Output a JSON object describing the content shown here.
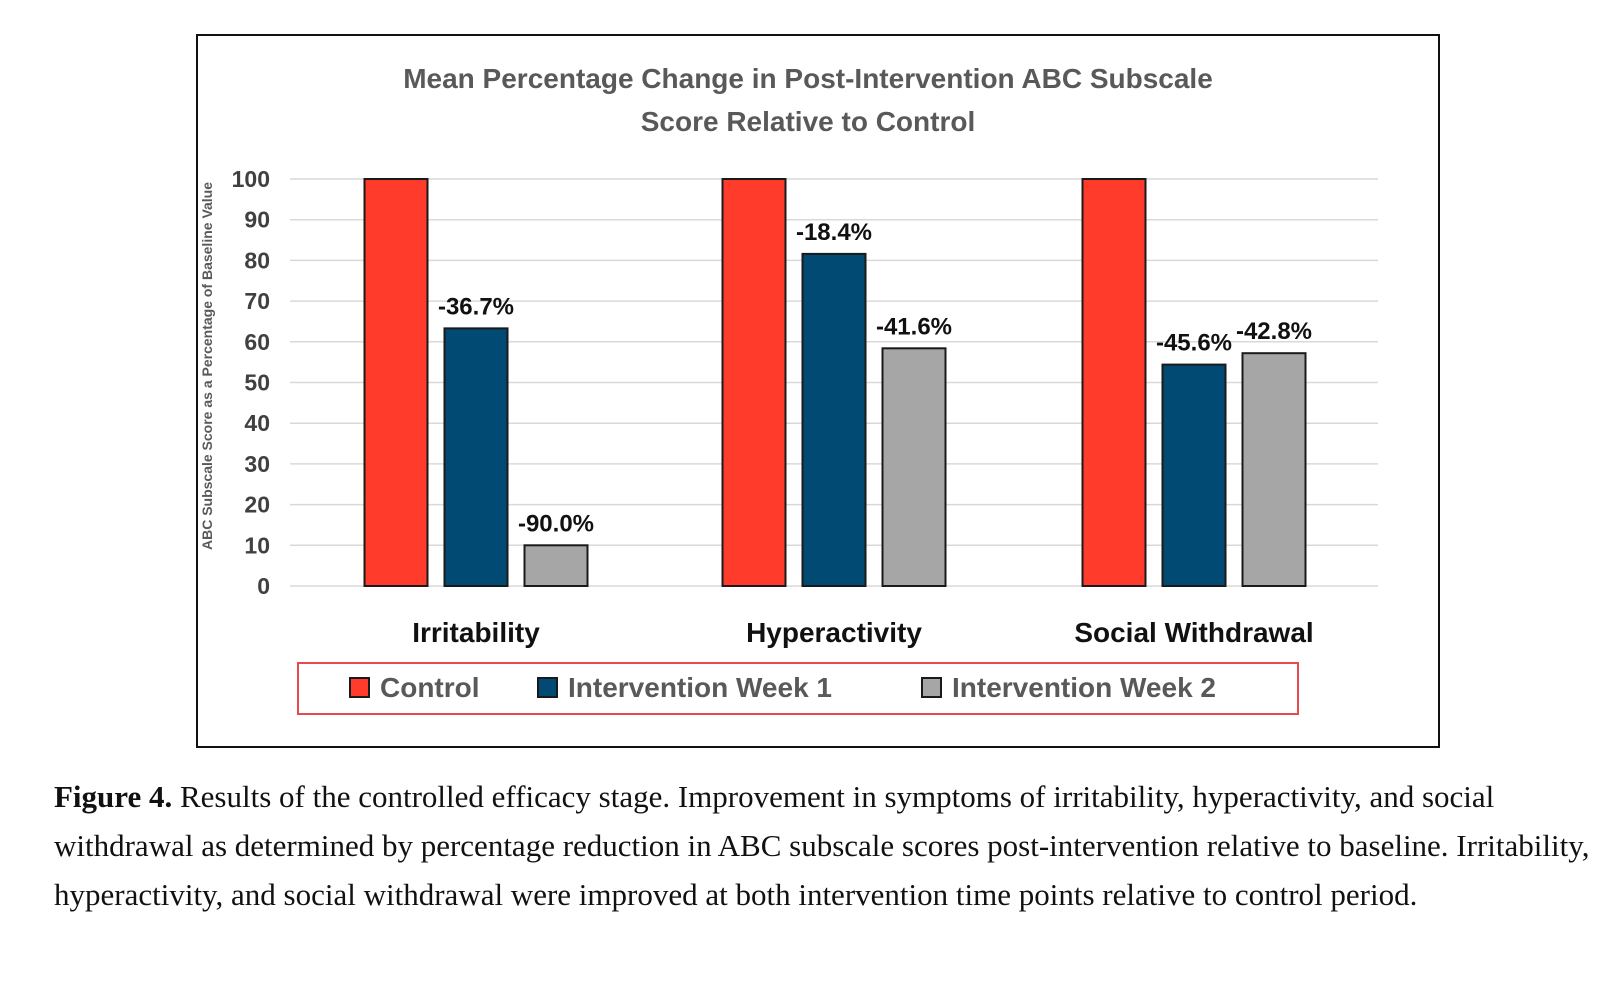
{
  "chart_data": {
    "type": "bar",
    "title_lines": [
      "Mean Percentage Change in Post-Intervention ABC Subscale",
      "Score Relative to Control"
    ],
    "ylabel": "ABC Subscale Score as a Percentage of Baseline Value",
    "xlabel": "",
    "ylim": [
      0,
      100
    ],
    "yticks": [
      0,
      10,
      20,
      30,
      40,
      50,
      60,
      70,
      80,
      90,
      100
    ],
    "grid": true,
    "categories": [
      "Irritability",
      "Hyperactivity",
      "Social Withdrawal"
    ],
    "series": [
      {
        "name": "Control",
        "color": "#ff3b2b",
        "values": [
          100,
          100,
          100
        ],
        "labels": [
          "",
          "",
          ""
        ]
      },
      {
        "name": "Intervention Week 1",
        "color": "#004a73",
        "values": [
          63.3,
          81.6,
          54.4
        ],
        "labels": [
          "-36.7%",
          "-18.4%",
          "-45.6%"
        ]
      },
      {
        "name": "Intervention Week 2",
        "color": "#a6a6a6",
        "values": [
          10.0,
          58.4,
          57.2
        ],
        "labels": [
          "-90.0%",
          "-41.6%",
          "-42.8%"
        ]
      }
    ],
    "legend_position": "bottom",
    "legend_border_color": "#e84a4a"
  },
  "caption": {
    "label": "Figure 4.",
    "text": "Results of the controlled efficacy stage. Improvement in symptoms of irritability, hyperactivity, and social withdrawal as determined by percentage reduction in ABC subscale scores post-intervention relative to baseline. Irritability, hyperactivity, and social withdrawal were improved at both intervention time points relative to control period."
  }
}
